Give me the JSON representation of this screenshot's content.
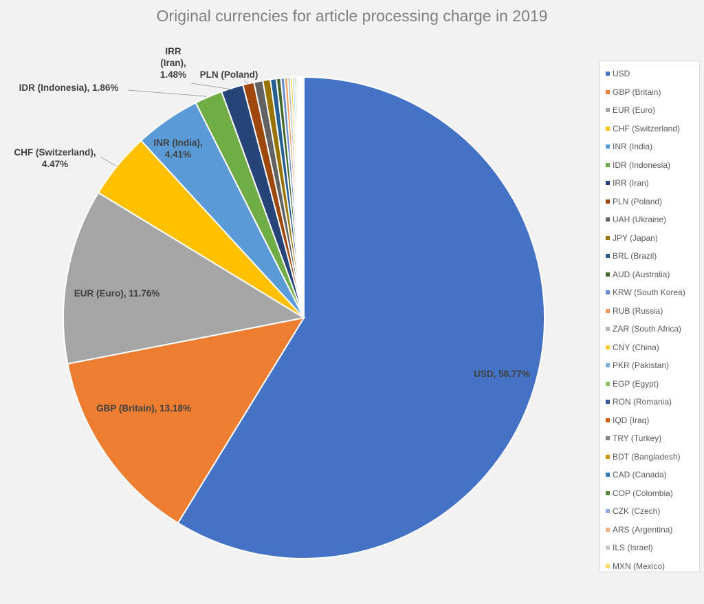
{
  "chart_data": {
    "type": "pie",
    "title": "Original currencies for article processing charge in 2019",
    "legend_position": "right",
    "slices": [
      {
        "name": "USD",
        "value": 58.77,
        "color": "#4472c4",
        "label": "USD, 58.77%"
      },
      {
        "name": "GBP (Britain)",
        "value": 13.18,
        "color": "#ed7d31",
        "label": "GBP (Britain), 13.18%"
      },
      {
        "name": "EUR (Euro)",
        "value": 11.76,
        "color": "#a5a5a5",
        "label": "EUR (Euro), 11.76%"
      },
      {
        "name": "CHF (Switzerland)",
        "value": 4.47,
        "color": "#ffc000",
        "label": "CHF (Switzerland), 4.47%"
      },
      {
        "name": "INR (India)",
        "value": 4.41,
        "color": "#5b9bd5",
        "label": "INR (India), 4.41%"
      },
      {
        "name": "IDR (Indonesia)",
        "value": 1.86,
        "color": "#70ad47",
        "label": "IDR (Indonesia), 1.86%"
      },
      {
        "name": "IRR (Iran)",
        "value": 1.48,
        "color": "#264478",
        "label": "IRR (Iran), 1.48%"
      },
      {
        "name": "PLN (Poland)",
        "value": 0.75,
        "color": "#9e480e",
        "label": "PLN (Poland)"
      },
      {
        "name": "UAH (Ukraine)",
        "value": 0.6,
        "color": "#636363",
        "label": ""
      },
      {
        "name": "JPY (Japan)",
        "value": 0.5,
        "color": "#997300",
        "label": ""
      },
      {
        "name": "BRL (Brazil)",
        "value": 0.4,
        "color": "#255e91",
        "label": ""
      },
      {
        "name": "AUD (Australia)",
        "value": 0.3,
        "color": "#43682b",
        "label": ""
      },
      {
        "name": "KRW (South Korea)",
        "value": 0.25,
        "color": "#698ed0",
        "label": ""
      },
      {
        "name": "RUB (Russia)",
        "value": 0.2,
        "color": "#f1975a",
        "label": ""
      },
      {
        "name": "ZAR (South Africa)",
        "value": 0.18,
        "color": "#b7b7b7",
        "label": ""
      },
      {
        "name": "CNY (China)",
        "value": 0.15,
        "color": "#ffcd33",
        "label": ""
      },
      {
        "name": "PKR (Pakistan)",
        "value": 0.13,
        "color": "#7cafdd",
        "label": ""
      },
      {
        "name": "EGP (Egypt)",
        "value": 0.12,
        "color": "#8cc168",
        "label": ""
      },
      {
        "name": "RON (Romania)",
        "value": 0.1,
        "color": "#335aa1",
        "label": ""
      },
      {
        "name": "IQD (Iraq)",
        "value": 0.08,
        "color": "#d26012",
        "label": ""
      },
      {
        "name": "TRY (Turkey)",
        "value": 0.07,
        "color": "#848484",
        "label": ""
      },
      {
        "name": "BDT (Bangladesh)",
        "value": 0.06,
        "color": "#cc9a00",
        "label": ""
      },
      {
        "name": "CAD (Canada)",
        "value": 0.05,
        "color": "#327dc2",
        "label": ""
      },
      {
        "name": "COP (Colombia)",
        "value": 0.04,
        "color": "#5a8a39",
        "label": ""
      },
      {
        "name": "CZK (Czech)",
        "value": 0.04,
        "color": "#8faadc",
        "label": ""
      },
      {
        "name": "ARS (Argentina)",
        "value": 0.03,
        "color": "#f4b183",
        "label": ""
      },
      {
        "name": "ILS (Israel)",
        "value": 0.02,
        "color": "#c9c9c9",
        "label": ""
      },
      {
        "name": "MXN (Mexico)",
        "value": 0.01,
        "color": "#ffd966",
        "label": ""
      }
    ]
  }
}
